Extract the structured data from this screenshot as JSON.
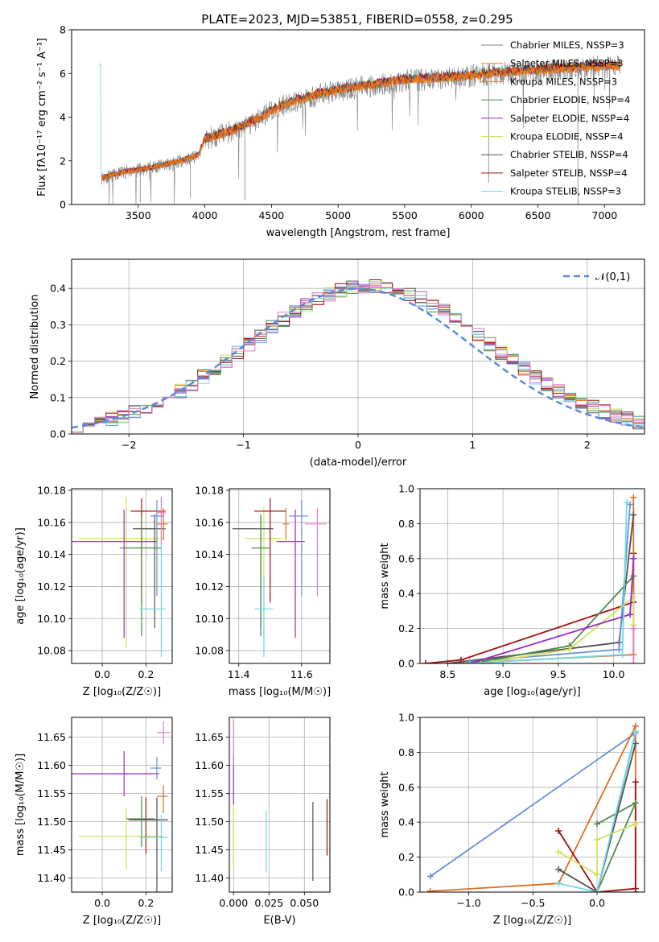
{
  "title": "PLATE=2023, MJD=53851, FIBERID=0558, z=0.295",
  "colors": [
    "#808080",
    "#ff7f0e",
    "#e06c22",
    "#4e8a4e",
    "#9c28c8",
    "#d4e05a",
    "#505050",
    "#a01010",
    "#70d8e0",
    "#e57ac8",
    "#6a8fd8"
  ],
  "series": [
    {
      "name": "Chabrier MILES, N$_{SSP}$=3",
      "color": "#808080",
      "label": "Chabrier MILES, NSSP=3"
    },
    {
      "name": "Salpeter MILES, N$_{SSP}$=3",
      "color": "#ff7f0e",
      "label": "Salpeter MILES, NSSP=3"
    },
    {
      "name": "Kroupa MILES, N$_{SSP}$=3",
      "color": "#e06c22",
      "label": "Kroupa MILES, NSSP=3"
    },
    {
      "name": "Chabrier ELODIE, N$_{SSP}$=4",
      "color": "#4e8a4e",
      "label": "Chabrier ELODIE, NSSP=4"
    },
    {
      "name": "Salpeter ELODIE, N$_{SSP}$=4",
      "color": "#9c28c8",
      "label": "Salpeter ELODIE, NSSP=4"
    },
    {
      "name": "Kroupa ELODIE, N$_{SSP}$=4",
      "color": "#d4e05a",
      "label": "Kroupa ELODIE, NSSP=4"
    },
    {
      "name": "Chabrier STELIB, N$_{SSP}$=4",
      "color": "#505050",
      "label": "Chabrier STELIB, NSSP=4"
    },
    {
      "name": "Salpeter STELIB, N$_{SSP}$=4",
      "color": "#a01010",
      "label": "Salpeter STELIB, NSSP=4"
    },
    {
      "name": "Kroupa STELIB, N$_{SSP}$=3",
      "color": "#70d8e0",
      "label": "Kroupa STELIB, NSSP=3"
    }
  ],
  "chart_data": [
    {
      "type": "line",
      "id": "spectrum",
      "ylabel": "Flux [fλ10⁻¹⁷ erg cm⁻² s⁻¹ A⁻¹]",
      "xlabel": "wavelength [Angstrom, rest frame]",
      "xlim": [
        3000,
        7300
      ],
      "ylim": [
        0,
        8
      ],
      "xticks": [
        3500,
        4000,
        4500,
        5000,
        5500,
        6000,
        6500,
        7000
      ],
      "yticks": [
        0,
        2,
        4,
        6,
        8
      ],
      "continuum": [
        [
          3220,
          1.3
        ],
        [
          3400,
          1.6
        ],
        [
          3600,
          1.8
        ],
        [
          3800,
          2.1
        ],
        [
          3950,
          2.4
        ],
        [
          4000,
          3.2
        ],
        [
          4200,
          3.6
        ],
        [
          4400,
          4.2
        ],
        [
          4600,
          4.9
        ],
        [
          4800,
          5.3
        ],
        [
          5000,
          5.6
        ],
        [
          5200,
          5.8
        ],
        [
          5500,
          6.1
        ],
        [
          5800,
          6.2
        ],
        [
          6000,
          6.3
        ],
        [
          6300,
          6.5
        ],
        [
          6600,
          6.6
        ],
        [
          6800,
          6.7
        ],
        [
          7100,
          6.8
        ]
      ],
      "grid": false
    },
    {
      "type": "histogram",
      "id": "residuals",
      "xlabel": "(data-model)/error",
      "ylabel": "Normed distribution",
      "xlim": [
        -2.5,
        2.5
      ],
      "ylim": [
        0,
        0.48
      ],
      "xticks": [
        -2,
        -1,
        0,
        1,
        2
      ],
      "yticks": [
        0.0,
        0.1,
        0.2,
        0.3,
        0.4
      ],
      "reference": {
        "label": "𝒩(0,1)",
        "color": "#5b8ad4",
        "mean": 0,
        "sigma": 1
      },
      "legend": "top-right",
      "grid": true
    },
    {
      "type": "scatter",
      "id": "Z-age",
      "xlabel": "Z [log₁₀(Z/Z☉)]",
      "ylabel": "age  [log₁₀(age/yr)]",
      "xlim": [
        -0.14,
        0.32
      ],
      "ylim": [
        10.072,
        10.181
      ],
      "xticks": [
        0.0,
        0.2
      ],
      "yticks": [
        10.08,
        10.1,
        10.12,
        10.14,
        10.16,
        10.18
      ],
      "points": [
        {
          "c": "#d4e05a",
          "x": 0.11,
          "y": 10.15,
          "xe": [
            0.22,
            0.17
          ],
          "ye": [
            0.068,
            0.026
          ]
        },
        {
          "c": "#9c28c8",
          "x": 0.1,
          "y": 10.148,
          "xe": [
            0.24,
            0.15
          ],
          "ye": [
            0.06,
            0.02
          ]
        },
        {
          "c": "#a01010",
          "x": 0.18,
          "y": 10.167,
          "xe": [
            0.05,
            0.11
          ],
          "ye": [
            0.057,
            0.008
          ]
        },
        {
          "c": "#505050",
          "x": 0.24,
          "y": 10.156,
          "xe": [
            0.1,
            0.05
          ],
          "ye": [
            0.062,
            0.009
          ]
        },
        {
          "c": "#4e8a4e",
          "x": 0.18,
          "y": 10.144,
          "xe": [
            0.1,
            0.09
          ],
          "ye": [
            0.055,
            0.02
          ]
        },
        {
          "c": "#6a8fd8",
          "x": 0.25,
          "y": 10.164,
          "xe": [
            0.03,
            0.03
          ],
          "ye": [
            0.05,
            0.01
          ]
        },
        {
          "c": "#e06c22",
          "x": 0.28,
          "y": 10.159,
          "xe": [
            0.03,
            0.02
          ],
          "ye": [
            0.01,
            0.01
          ]
        },
        {
          "c": "#70d8e0",
          "x": 0.27,
          "y": 10.106,
          "xe": [
            0.1,
            0.02
          ],
          "ye": [
            0.03,
            0.05
          ]
        },
        {
          "c": "#e57ac8",
          "x": 0.27,
          "y": 10.166,
          "xe": [
            0.02,
            0.02
          ],
          "ye": [
            0.02,
            0.01
          ]
        }
      ],
      "grid": true
    },
    {
      "type": "scatter",
      "id": "mass-age",
      "xlabel": "mass [log₁₀(M/M☉)]",
      "ylabel": "",
      "xlim": [
        11.37,
        11.69
      ],
      "ylim": [
        10.072,
        10.181
      ],
      "xticks": [
        11.4,
        11.6
      ],
      "yticks": [
        10.08,
        10.1,
        10.12,
        10.14,
        10.16,
        10.18
      ],
      "points": [
        {
          "c": "#d4e05a",
          "x": 11.48,
          "y": 10.15,
          "xe": [
            0.06,
            0.06
          ],
          "ye": [
            0.065,
            0.02
          ]
        },
        {
          "c": "#9c28c8",
          "x": 11.58,
          "y": 10.148,
          "xe": [
            0.06,
            0.03
          ],
          "ye": [
            0.06,
            0.02
          ]
        },
        {
          "c": "#a01010",
          "x": 11.5,
          "y": 10.167,
          "xe": [
            0.05,
            0.05
          ],
          "ye": [
            0.057,
            0.008
          ]
        },
        {
          "c": "#505050",
          "x": 11.47,
          "y": 10.156,
          "xe": [
            0.09,
            0.04
          ],
          "ye": [
            0.062,
            0.009
          ]
        },
        {
          "c": "#4e8a4e",
          "x": 11.47,
          "y": 10.144,
          "xe": [
            0.03,
            0.03
          ],
          "ye": [
            0.055,
            0.02
          ]
        },
        {
          "c": "#6a8fd8",
          "x": 11.6,
          "y": 10.164,
          "xe": [
            0.04,
            0.02
          ],
          "ye": [
            0.05,
            0.01
          ]
        },
        {
          "c": "#e06c22",
          "x": 11.55,
          "y": 10.159,
          "xe": [
            0.01,
            0.01
          ],
          "ye": [
            0.01,
            0.01
          ]
        },
        {
          "c": "#70d8e0",
          "x": 11.48,
          "y": 10.106,
          "xe": [
            0.03,
            0.03
          ],
          "ye": [
            0.03,
            0.02
          ]
        },
        {
          "c": "#e57ac8",
          "x": 11.65,
          "y": 10.159,
          "xe": [
            0.04,
            0.03
          ],
          "ye": [
            0.045,
            0.01
          ]
        }
      ],
      "grid": true
    },
    {
      "type": "line",
      "id": "age-weight",
      "xlabel": "age  [log₁₀(age/yr)]",
      "ylabel": "mass weight",
      "xlim": [
        8.25,
        10.28
      ],
      "ylim": [
        0,
        1.0
      ],
      "xticks": [
        8.5,
        9.0,
        9.5,
        10.0
      ],
      "yticks": [
        0.0,
        0.2,
        0.4,
        0.6,
        0.8,
        1.0
      ],
      "series": [
        {
          "c": "#a01010",
          "pts": [
            [
              8.3,
              0.0
            ],
            [
              8.62,
              0.02
            ],
            [
              10.18,
              0.35
            ],
            [
              10.18,
              0.63
            ]
          ]
        },
        {
          "c": "#e06c22",
          "pts": [
            [
              8.6,
              0.0
            ],
            [
              10.18,
              0.05
            ],
            [
              10.18,
              0.95
            ]
          ]
        },
        {
          "c": "#505050",
          "pts": [
            [
              8.5,
              0.0
            ],
            [
              10.05,
              0.12
            ],
            [
              10.18,
              0.85
            ]
          ]
        },
        {
          "c": "#6a8fd8",
          "pts": [
            [
              8.7,
              0.01
            ],
            [
              10.05,
              0.08
            ],
            [
              10.15,
              0.91
            ]
          ]
        },
        {
          "c": "#4e8a4e",
          "pts": [
            [
              8.8,
              0.01
            ],
            [
              9.6,
              0.1
            ],
            [
              10.18,
              0.5
            ]
          ]
        },
        {
          "c": "#d4e05a",
          "pts": [
            [
              8.8,
              0.0
            ],
            [
              9.6,
              0.08
            ],
            [
              10.18,
              0.38
            ],
            [
              10.18,
              0.22
            ]
          ]
        },
        {
          "c": "#9c28c8",
          "pts": [
            [
              8.7,
              0.0
            ],
            [
              10.15,
              0.28
            ],
            [
              10.18,
              0.6
            ]
          ]
        },
        {
          "c": "#70d8e0",
          "pts": [
            [
              8.7,
              0.0
            ],
            [
              10.08,
              0.05
            ],
            [
              10.12,
              0.92
            ]
          ]
        },
        {
          "c": "#e57ac8",
          "pts": [
            [
              10.18,
              0.0
            ],
            [
              10.18,
              0.2
            ]
          ]
        }
      ],
      "grid": true
    },
    {
      "type": "scatter",
      "id": "Z-mass",
      "xlabel": "Z [log₁₀(Z/Z☉)]",
      "ylabel": "mass [log₁₀(M/M☉)]",
      "xlim": [
        -0.14,
        0.32
      ],
      "ylim": [
        11.375,
        11.685
      ],
      "xticks": [
        0.0,
        0.2
      ],
      "yticks": [
        11.4,
        11.45,
        11.5,
        11.55,
        11.6,
        11.65
      ],
      "points": [
        {
          "c": "#d4e05a",
          "x": 0.11,
          "y": 11.474,
          "xe": [
            0.22,
            0.17
          ],
          "ye": [
            0.06,
            0.05
          ]
        },
        {
          "c": "#9c28c8",
          "x": 0.1,
          "y": 11.585,
          "xe": [
            0.24,
            0.16
          ],
          "ye": [
            0.04,
            0.04
          ]
        },
        {
          "c": "#a01010",
          "x": 0.2,
          "y": 11.503,
          "xe": [
            0.06,
            0.1
          ],
          "ye": [
            0.06,
            0.04
          ]
        },
        {
          "c": "#505050",
          "x": 0.25,
          "y": 11.503,
          "xe": [
            0.13,
            0.05
          ],
          "ye": [
            0.13,
            0.04
          ]
        },
        {
          "c": "#4e8a4e",
          "x": 0.18,
          "y": 11.505,
          "xe": [
            0.07,
            0.06
          ],
          "ye": [
            0.05,
            0.04
          ]
        },
        {
          "c": "#6a8fd8",
          "x": 0.25,
          "y": 11.595,
          "xe": [
            0.03,
            0.02
          ],
          "ye": [
            0.02,
            0.02
          ]
        },
        {
          "c": "#e06c22",
          "x": 0.28,
          "y": 11.545,
          "xe": [
            0.03,
            0.02
          ],
          "ye": [
            0.03,
            0.02
          ]
        },
        {
          "c": "#70d8e0",
          "x": 0.27,
          "y": 11.472,
          "xe": [
            0.1,
            0.03
          ],
          "ye": [
            0.06,
            0.04
          ]
        },
        {
          "c": "#e57ac8",
          "x": 0.28,
          "y": 11.658,
          "xe": [
            0.03,
            0.03
          ],
          "ye": [
            0.02,
            0.02
          ]
        }
      ],
      "grid": true
    },
    {
      "type": "scatter",
      "id": "ebv-mass",
      "xlabel": "E(B-V)",
      "ylabel": "",
      "xlim": [
        -0.003,
        0.068
      ],
      "ylim": [
        11.375,
        11.685
      ],
      "xticks": [
        0.0,
        0.025,
        0.05
      ],
      "xticklabels": [
        "0.000",
        "0.025",
        "0.050"
      ],
      "yticks": [
        11.4,
        11.45,
        11.5,
        11.55,
        11.6,
        11.65
      ],
      "points": [
        {
          "c": "#9c28c8",
          "x": 0.0,
          "y": 11.58,
          "ye": [
            0.05,
            0.04
          ]
        },
        {
          "c": "#e57ac8",
          "x": 0.0,
          "y": 11.63,
          "ye": [
            0.03,
            0.05
          ]
        },
        {
          "c": "#d4e05a",
          "x": 0.0,
          "y": 11.48,
          "ye": [
            0.06,
            0.05
          ]
        },
        {
          "c": "#70d8e0",
          "x": 0.023,
          "y": 11.47,
          "ye": [
            0.06,
            0.05
          ]
        },
        {
          "c": "#505050",
          "x": 0.056,
          "y": 11.455,
          "ye": [
            0.06,
            0.08
          ]
        },
        {
          "c": "#a01010",
          "x": 0.066,
          "y": 11.49,
          "ye": [
            0.05,
            0.05
          ]
        }
      ],
      "grid": true
    },
    {
      "type": "line",
      "id": "Z-weight",
      "xlabel": "Z [log₁₀(Z/Z☉)]",
      "ylabel": "mass weight",
      "xlim": [
        -1.38,
        0.37
      ],
      "ylim": [
        0,
        1.0
      ],
      "xticks": [
        -1.0,
        -0.5,
        0.0
      ],
      "yticks": [
        0.0,
        0.2,
        0.4,
        0.6,
        0.8,
        1.0
      ],
      "series": [
        {
          "c": "#6a8fd8",
          "pts": [
            [
              -1.3,
              0.09
            ],
            [
              0.3,
              0.91
            ],
            [
              0.0,
              0.0
            ]
          ]
        },
        {
          "c": "#e06c22",
          "pts": [
            [
              -1.3,
              0.005
            ],
            [
              -0.3,
              0.05
            ],
            [
              0.3,
              0.95
            ],
            [
              0.3,
              0.0
            ]
          ]
        },
        {
          "c": "#a01010",
          "pts": [
            [
              -0.3,
              0.35
            ],
            [
              0.0,
              0.0
            ],
            [
              0.3,
              0.02
            ],
            [
              0.3,
              0.63
            ]
          ]
        },
        {
          "c": "#505050",
          "pts": [
            [
              -0.3,
              0.13
            ],
            [
              0.0,
              0.0
            ],
            [
              0.3,
              0.85
            ]
          ]
        },
        {
          "c": "#4e8a4e",
          "pts": [
            [
              0.0,
              0.39
            ],
            [
              0.3,
              0.51
            ],
            [
              0.0,
              0.0
            ]
          ]
        },
        {
          "c": "#d4e05a",
          "pts": [
            [
              -0.3,
              0.23
            ],
            [
              0.0,
              0.1
            ],
            [
              0.0,
              0.3
            ],
            [
              0.3,
              0.39
            ]
          ]
        },
        {
          "c": "#70d8e0",
          "pts": [
            [
              -0.3,
              0.05
            ],
            [
              0.0,
              0.0
            ],
            [
              0.3,
              0.92
            ]
          ]
        }
      ],
      "grid": true
    }
  ]
}
